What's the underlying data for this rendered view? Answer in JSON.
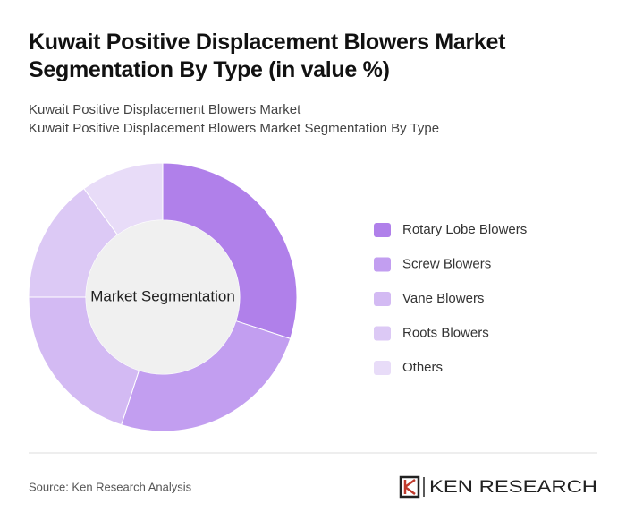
{
  "chart_data": {
    "type": "donut",
    "title": "Kuwait Positive Displacement Blowers Market Segmentation By Type (in value %)",
    "subtitles": [
      "Kuwait Positive Displacement Blowers Market",
      "Kuwait Positive Displacement Blowers Market Segmentation By Type"
    ],
    "center_label": "Market Segmentation",
    "categories": [
      "Rotary Lobe Blowers",
      "Screw Blowers",
      "Vane Blowers",
      "Roots Blowers",
      "Others"
    ],
    "values": [
      30,
      25,
      20,
      15,
      10
    ],
    "colors": [
      "#b080ea",
      "#c29ef0",
      "#d3baf3",
      "#dcc9f5",
      "#e8dcf8"
    ],
    "source": "Source: Ken Research Analysis",
    "brand": "KEN RESEARCH"
  }
}
